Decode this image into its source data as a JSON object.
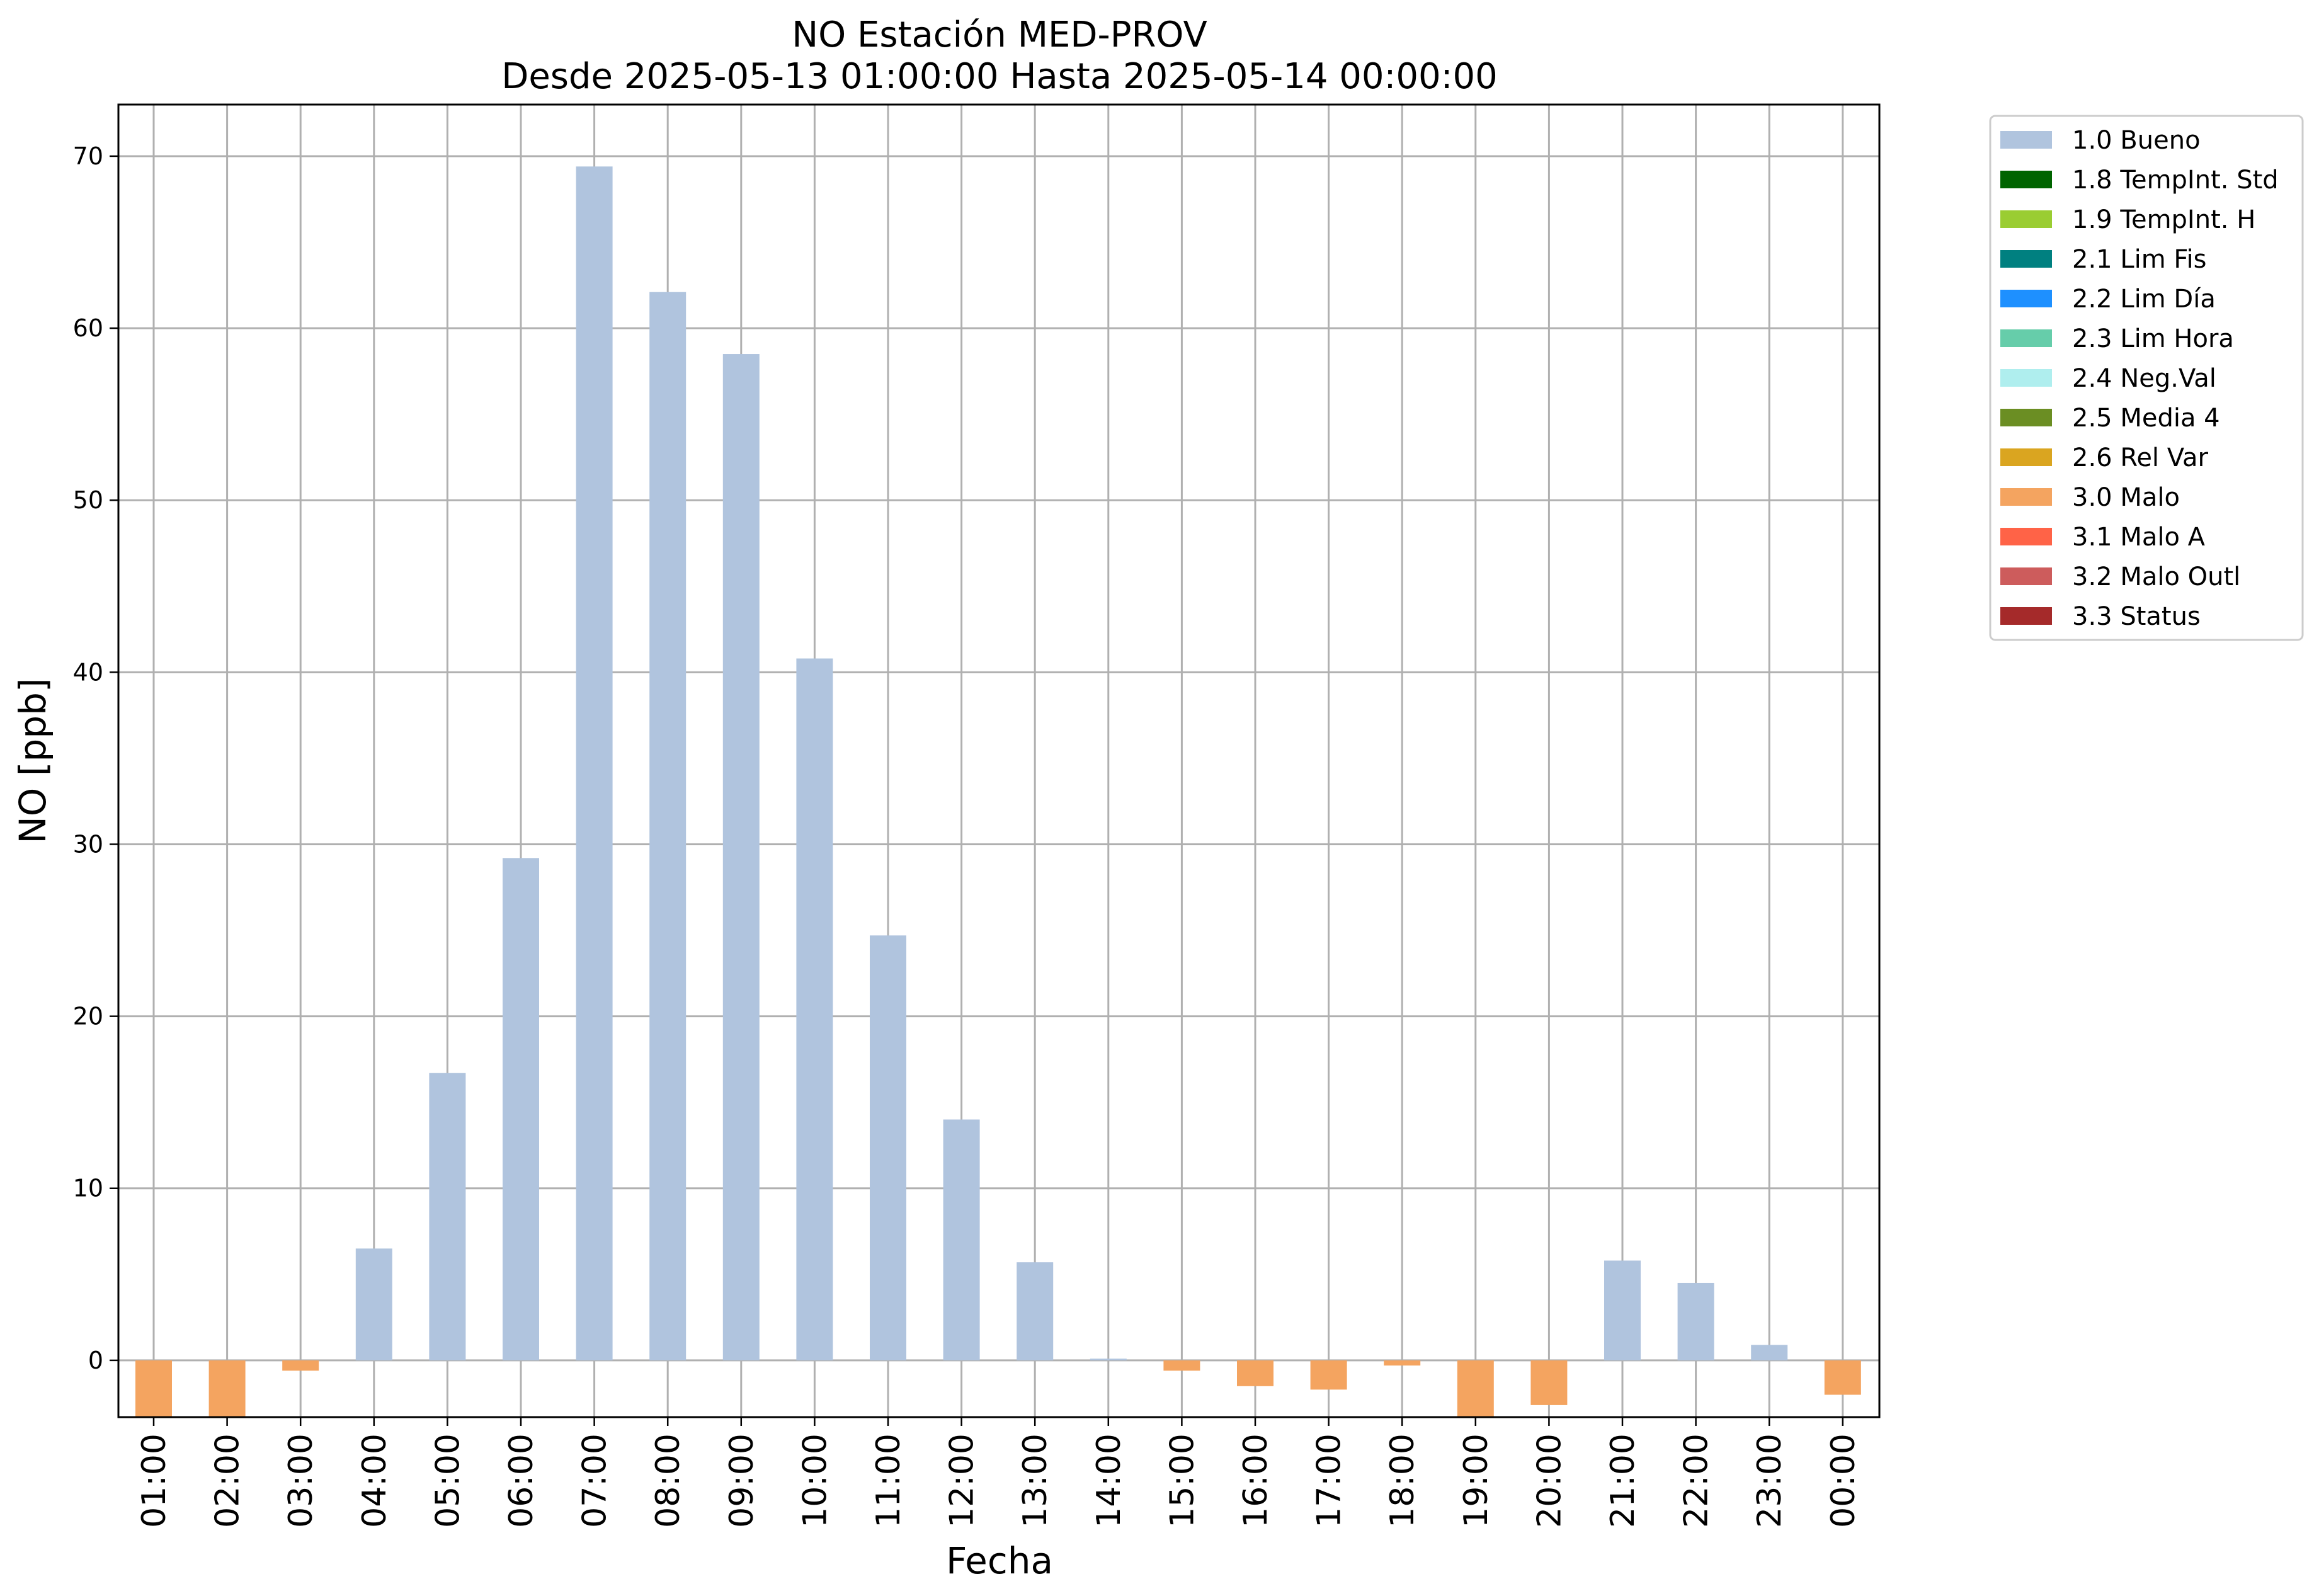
{
  "chart_data": {
    "type": "bar",
    "title": "NO Estación MED-PROV",
    "subtitle": "Desde 2025-05-13 01:00:00 Hasta 2025-05-14 00:00:00",
    "xlabel": "Fecha",
    "ylabel": "NO [ppb]",
    "categories": [
      "01:00",
      "02:00",
      "03:00",
      "04:00",
      "05:00",
      "06:00",
      "07:00",
      "08:00",
      "09:00",
      "10:00",
      "11:00",
      "12:00",
      "13:00",
      "14:00",
      "15:00",
      "16:00",
      "17:00",
      "18:00",
      "19:00",
      "20:00",
      "21:00",
      "22:00",
      "23:00",
      "00:00"
    ],
    "values": [
      -3.3,
      -3.3,
      -0.6,
      6.5,
      16.7,
      29.2,
      69.4,
      62.1,
      58.5,
      40.8,
      24.7,
      14.0,
      5.7,
      0.1,
      -0.6,
      -1.5,
      -1.7,
      -0.3,
      -3.3,
      -2.6,
      5.8,
      4.5,
      0.9,
      -2.0
    ],
    "quality": [
      "3.0",
      "3.0",
      "3.0",
      "1.0",
      "1.0",
      "1.0",
      "1.0",
      "1.0",
      "1.0",
      "1.0",
      "1.0",
      "1.0",
      "1.0",
      "1.0",
      "3.0",
      "3.0",
      "3.0",
      "3.0",
      "3.0",
      "3.0",
      "1.0",
      "1.0",
      "1.0",
      "3.0"
    ],
    "ylim": [
      -3.3,
      73
    ],
    "yticks": [
      0,
      10,
      20,
      30,
      40,
      50,
      60,
      70
    ],
    "ytick_labels": [
      "0",
      "10",
      "20",
      "30",
      "40",
      "50",
      "60",
      "70"
    ],
    "grid": true,
    "legend_position": "outside-top-right",
    "legend": [
      {
        "code": "1.0",
        "label": "1.0 Bueno",
        "color": "#b0c4de"
      },
      {
        "code": "1.8",
        "label": "1.8 TempInt. Std",
        "color": "#006400"
      },
      {
        "code": "1.9",
        "label": "1.9 TempInt. H",
        "color": "#9acd32"
      },
      {
        "code": "2.1",
        "label": "2.1 Lim Fis",
        "color": "#008080"
      },
      {
        "code": "2.2",
        "label": "2.2 Lim Día",
        "color": "#1e90ff"
      },
      {
        "code": "2.3",
        "label": "2.3 Lim Hora",
        "color": "#66cdaa"
      },
      {
        "code": "2.4",
        "label": "2.4 Neg.Val",
        "color": "#afeeee"
      },
      {
        "code": "2.5",
        "label": "2.5 Media 4",
        "color": "#6b8e23"
      },
      {
        "code": "2.6",
        "label": "2.6 Rel Var",
        "color": "#daa520"
      },
      {
        "code": "3.0",
        "label": "3.0 Malo",
        "color": "#f4a460"
      },
      {
        "code": "3.1",
        "label": "3.1 Malo A",
        "color": "#ff6347"
      },
      {
        "code": "3.2",
        "label": "3.2 Malo Outl",
        "color": "#cd5c5c"
      },
      {
        "code": "3.3",
        "label": "3.3 Status",
        "color": "#a52a2a"
      }
    ]
  }
}
